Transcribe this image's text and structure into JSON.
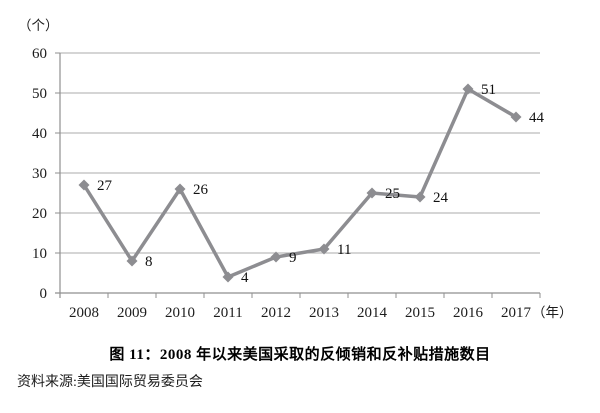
{
  "chart_data": {
    "type": "line",
    "categories": [
      "2008",
      "2009",
      "2010",
      "2011",
      "2012",
      "2013",
      "2014",
      "2015",
      "2016",
      "2017"
    ],
    "values": [
      27,
      8,
      26,
      4,
      9,
      11,
      25,
      24,
      51,
      44
    ],
    "data_labels": [
      "27",
      "8",
      "26",
      "4",
      "9",
      "11",
      "25",
      "24",
      "51",
      "44"
    ],
    "title": "图 11：2008 年以来美国采取的反倾销和反补贴措施数目",
    "source": "资料来源:美国国际贸易委员会",
    "y_axis": {
      "unit_label": "（个）",
      "min": 0,
      "max": 60,
      "ticks": [
        0,
        10,
        20,
        30,
        40,
        50,
        60
      ],
      "tick_labels": [
        "0",
        "10",
        "20",
        "30",
        "40",
        "50",
        "60"
      ]
    },
    "x_axis": {
      "unit_label": "（年）"
    },
    "legend": null,
    "grid": true,
    "marker": "diamond",
    "colors": {
      "line": "#8d8d91",
      "marker": "#8d8d91",
      "gridline": "#ababab",
      "axis": "#8f8f8f",
      "tick_text": "#1c1c1c",
      "data_label_text": "#111111"
    }
  }
}
